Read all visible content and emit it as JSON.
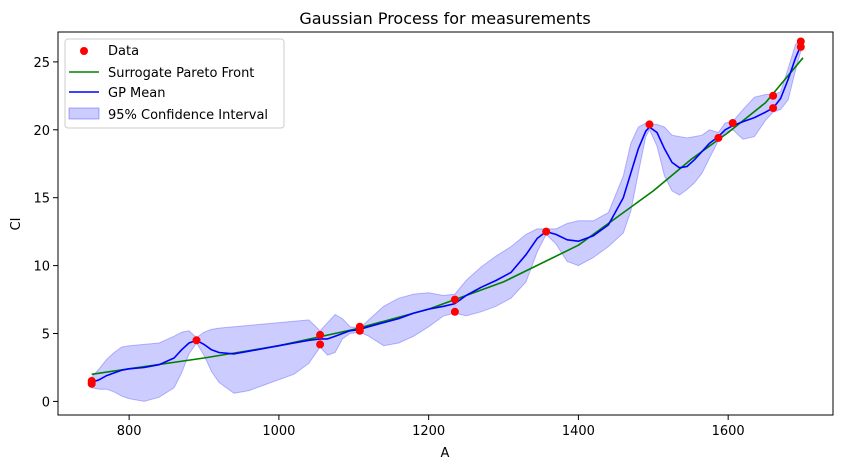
{
  "chart_data": {
    "type": "line",
    "title": "Gaussian Process for measurements",
    "xlabel": "A",
    "ylabel": "CI",
    "xlim": [
      705,
      1740
    ],
    "ylim": [
      -1,
      27.2
    ],
    "xticks": [
      800,
      1000,
      1200,
      1400,
      1600
    ],
    "yticks": [
      0,
      5,
      10,
      15,
      20,
      25
    ],
    "grid": false,
    "legend_position": "top-left",
    "legend": [
      "Data",
      "Surrogate Pareto Front",
      "GP Mean",
      "95% Confidence Interval"
    ],
    "colors": {
      "data": "#ff0000",
      "pareto": "#008000",
      "mean": "#0000ff",
      "band": "#0000ff"
    },
    "series": [
      {
        "name": "Data",
        "kind": "scatter",
        "x": [
          750,
          750,
          890,
          1055,
          1055,
          1108,
          1108,
          1235,
          1235,
          1357,
          1495,
          1587,
          1606,
          1660,
          1660,
          1697,
          1697
        ],
        "y": [
          1.5,
          1.3,
          4.5,
          4.9,
          4.2,
          5.5,
          5.2,
          7.5,
          6.6,
          12.5,
          20.4,
          19.4,
          20.5,
          22.5,
          21.6,
          26.5,
          26.1
        ]
      },
      {
        "name": "Surrogate Pareto Front",
        "kind": "line",
        "x": [
          750,
          800,
          900,
          1000,
          1100,
          1200,
          1300,
          1400,
          1500,
          1550,
          1600,
          1650,
          1700
        ],
        "y": [
          2.0,
          2.4,
          3.2,
          4.1,
          5.3,
          6.8,
          8.8,
          11.5,
          15.5,
          17.8,
          19.8,
          22.0,
          25.3
        ]
      },
      {
        "name": "GP Mean",
        "kind": "line",
        "x": [
          750,
          760,
          770,
          780,
          790,
          800,
          820,
          840,
          860,
          870,
          880,
          890,
          900,
          910,
          920,
          940,
          960,
          980,
          1000,
          1020,
          1040,
          1055,
          1065,
          1075,
          1085,
          1095,
          1108,
          1120,
          1140,
          1160,
          1180,
          1200,
          1220,
          1235,
          1250,
          1270,
          1290,
          1310,
          1330,
          1345,
          1357,
          1370,
          1385,
          1400,
          1420,
          1440,
          1460,
          1470,
          1480,
          1490,
          1495,
          1505,
          1515,
          1525,
          1535,
          1545,
          1555,
          1565,
          1575,
          1587,
          1596,
          1606,
          1620,
          1635,
          1650,
          1660,
          1670,
          1680,
          1690,
          1697
        ],
        "y": [
          1.4,
          1.6,
          1.9,
          2.1,
          2.3,
          2.4,
          2.5,
          2.7,
          3.2,
          3.8,
          4.3,
          4.5,
          4.2,
          3.8,
          3.6,
          3.5,
          3.7,
          3.9,
          4.1,
          4.3,
          4.5,
          4.6,
          4.6,
          4.8,
          5.0,
          5.2,
          5.3,
          5.5,
          5.8,
          6.1,
          6.5,
          6.8,
          7.0,
          7.2,
          7.8,
          8.4,
          8.9,
          9.5,
          10.8,
          12.0,
          12.5,
          12.3,
          11.9,
          11.8,
          12.2,
          13.0,
          15.0,
          16.8,
          18.6,
          19.9,
          20.2,
          19.8,
          18.6,
          17.6,
          17.2,
          17.3,
          17.8,
          18.4,
          19.0,
          19.5,
          20.0,
          20.3,
          20.6,
          20.9,
          21.3,
          21.6,
          22.3,
          23.7,
          25.3,
          26.2
        ]
      },
      {
        "name": "95% Confidence Interval",
        "kind": "band",
        "x": [
          750,
          760,
          770,
          780,
          790,
          800,
          820,
          840,
          860,
          870,
          880,
          890,
          900,
          910,
          920,
          940,
          960,
          980,
          1000,
          1020,
          1040,
          1055,
          1065,
          1075,
          1085,
          1095,
          1108,
          1120,
          1140,
          1160,
          1180,
          1200,
          1220,
          1235,
          1250,
          1270,
          1290,
          1310,
          1330,
          1345,
          1357,
          1370,
          1385,
          1400,
          1420,
          1440,
          1460,
          1470,
          1480,
          1490,
          1495,
          1505,
          1515,
          1525,
          1535,
          1545,
          1555,
          1565,
          1575,
          1587,
          1596,
          1606,
          1620,
          1635,
          1650,
          1660,
          1670,
          1680,
          1690,
          1697
        ],
        "lower": [
          1.0,
          0.9,
          0.9,
          0.7,
          0.4,
          0.2,
          0.0,
          0.3,
          1.0,
          2.1,
          3.5,
          4.3,
          3.4,
          2.2,
          1.4,
          0.6,
          0.8,
          1.2,
          1.6,
          2.0,
          2.8,
          4.0,
          3.4,
          3.6,
          4.6,
          5.0,
          5.1,
          4.8,
          4.1,
          4.3,
          4.8,
          5.5,
          6.3,
          6.5,
          6.3,
          6.6,
          7.0,
          7.6,
          8.8,
          11.0,
          12.3,
          11.6,
          10.3,
          10.0,
          10.6,
          11.4,
          12.4,
          14.0,
          16.8,
          19.5,
          20.0,
          18.8,
          16.6,
          15.5,
          15.2,
          15.6,
          16.1,
          16.8,
          17.9,
          19.2,
          19.8,
          20.0,
          19.3,
          19.5,
          20.7,
          21.3,
          21.5,
          22.2,
          24.4,
          25.8
        ],
        "upper": [
          1.8,
          2.4,
          3.1,
          3.6,
          4.0,
          4.1,
          4.2,
          4.3,
          4.8,
          5.1,
          5.2,
          4.7,
          5.1,
          5.3,
          5.4,
          5.5,
          5.6,
          5.7,
          5.8,
          5.9,
          6.0,
          5.2,
          5.8,
          6.4,
          6.1,
          5.5,
          5.4,
          6.0,
          7.0,
          7.6,
          7.9,
          8.0,
          7.8,
          7.9,
          8.9,
          9.9,
          10.7,
          11.4,
          12.3,
          12.7,
          12.7,
          12.7,
          13.1,
          13.3,
          13.3,
          13.9,
          16.6,
          19.0,
          20.2,
          20.5,
          20.4,
          20.4,
          20.2,
          19.6,
          19.5,
          19.4,
          19.5,
          19.6,
          20.0,
          19.8,
          20.5,
          20.6,
          21.5,
          22.4,
          22.6,
          22.6,
          22.8,
          24.5,
          26.3,
          26.6
        ]
      }
    ]
  }
}
